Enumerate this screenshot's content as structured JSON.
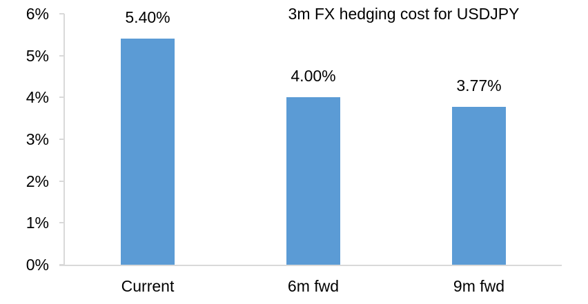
{
  "chart_data": {
    "type": "bar",
    "title": "3m FX hedging cost for USDJPY",
    "categories": [
      "Current",
      "6m fwd",
      "9m fwd"
    ],
    "values": [
      5.4,
      4.0,
      3.77
    ],
    "data_labels": [
      "5.40%",
      "4.00%",
      "3.77%"
    ],
    "xlabel": "",
    "ylabel": "",
    "ylim": [
      0,
      6
    ],
    "y_ticks": [
      {
        "value": 6,
        "label": "6%"
      },
      {
        "value": 5,
        "label": "5%"
      },
      {
        "value": 4,
        "label": "4%"
      },
      {
        "value": 3,
        "label": "3%"
      },
      {
        "value": 2,
        "label": "2%"
      },
      {
        "value": 1,
        "label": "1%"
      },
      {
        "value": 0,
        "label": "0%"
      }
    ],
    "grid": false,
    "legend": false,
    "bar_color": "#5B9BD5",
    "axis_color": "#D9D9D9",
    "text_color": "#000000",
    "background_color": "#FFFFFF"
  }
}
